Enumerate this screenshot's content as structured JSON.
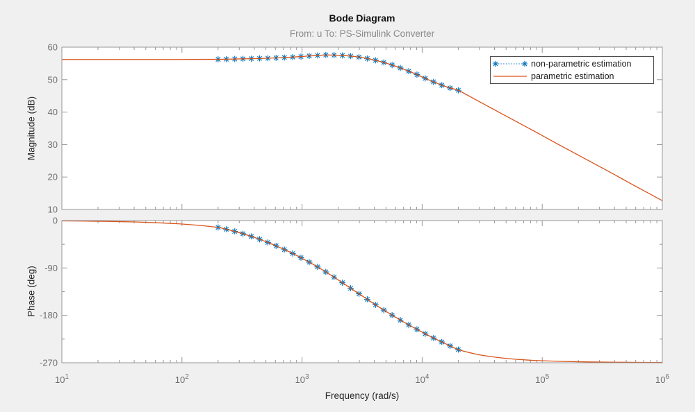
{
  "figure": {
    "title": "Bode Diagram",
    "subtitle": "From: u  To: PS-Simulink Converter",
    "background_color": "#F0F0F0",
    "plot_background": "#FFFFFF",
    "axes_line_color": "#969696",
    "tick_label_color": "#6E6E6E",
    "axis_label_color": "#262626",
    "title_color": "#111111",
    "subtitle_color": "#8A8A8A"
  },
  "legend": {
    "entries": [
      {
        "label": "non-parametric estimation",
        "line_style": "dotted",
        "marker": "asterisk",
        "color": "#0072BD"
      },
      {
        "label": "parametric estimation",
        "line_style": "solid",
        "marker": "none",
        "color": "#D95319"
      }
    ]
  },
  "x_axis": {
    "label": "Frequency  (rad/s)",
    "scale": "log",
    "tick_base": "10",
    "tick_exponents": [
      1,
      2,
      3,
      4,
      5,
      6
    ],
    "xlim": [
      10,
      1000000
    ]
  },
  "chart_data": [
    {
      "type": "line",
      "name": "magnitude-subplot",
      "title": "Bode Diagram",
      "xlabel": "Frequency  (rad/s)",
      "ylabel": "Magnitude (dB)",
      "xscale": "log",
      "xlim": [
        10,
        1000000
      ],
      "ylim": [
        10,
        60
      ],
      "yticks": [
        60,
        50,
        40,
        30,
        20,
        10
      ],
      "yticks_minor": [],
      "grid": false,
      "series": [
        {
          "name": "parametric estimation",
          "color": "#D95319",
          "style": "solid",
          "points": [
            [
              10,
              56.2
            ],
            [
              30,
              56.2
            ],
            [
              60,
              56.2
            ],
            [
              100,
              56.2
            ],
            [
              150,
              56.25
            ],
            [
              200,
              56.25
            ],
            [
              275,
              56.35
            ],
            [
              380,
              56.45
            ],
            [
              520,
              56.6
            ],
            [
              710,
              56.8
            ],
            [
              980,
              57.1
            ],
            [
              1150,
              57.3
            ],
            [
              1350,
              57.45
            ],
            [
              1580,
              57.6
            ],
            [
              1850,
              57.55
            ],
            [
              2170,
              57.45
            ],
            [
              2540,
              57.25
            ],
            [
              2980,
              56.95
            ],
            [
              3490,
              56.5
            ],
            [
              4090,
              55.95
            ],
            [
              4800,
              55.3
            ],
            [
              5620,
              54.5
            ],
            [
              6590,
              53.6
            ],
            [
              7720,
              52.6
            ],
            [
              9050,
              51.55
            ],
            [
              10610,
              50.4
            ],
            [
              12440,
              49.3
            ],
            [
              14580,
              48.3
            ],
            [
              17090,
              47.4
            ],
            [
              20000,
              46.7
            ],
            [
              28000,
              43.8
            ],
            [
              40000,
              40.7
            ],
            [
              60000,
              37.2
            ],
            [
              90000,
              33.7
            ],
            [
              140000,
              29.8
            ],
            [
              220000,
              25.9
            ],
            [
              350000,
              21.9
            ],
            [
              550000,
              17.9
            ],
            [
              1000000,
              12.7
            ]
          ]
        },
        {
          "name": "non-parametric estimation",
          "color": "#0072BD",
          "style": "dotted-asterisk",
          "points": [
            [
              200,
              56.25
            ],
            [
              234,
              56.3
            ],
            [
              275,
              56.35
            ],
            [
              322,
              56.4
            ],
            [
              378,
              56.45
            ],
            [
              443,
              56.55
            ],
            [
              519,
              56.6
            ],
            [
              608,
              56.7
            ],
            [
              713,
              56.8
            ],
            [
              836,
              56.95
            ],
            [
              979,
              57.1
            ],
            [
              1148,
              57.3
            ],
            [
              1346,
              57.45
            ],
            [
              1577,
              57.6
            ],
            [
              1849,
              57.55
            ],
            [
              2167,
              57.45
            ],
            [
              2540,
              57.25
            ],
            [
              2978,
              56.95
            ],
            [
              3490,
              56.5
            ],
            [
              4091,
              55.95
            ],
            [
              4795,
              55.3
            ],
            [
              5621,
              54.5
            ],
            [
              6588,
              53.6
            ],
            [
              7722,
              52.6
            ],
            [
              9052,
              51.55
            ],
            [
              10610,
              50.4
            ],
            [
              12437,
              49.3
            ],
            [
              14578,
              48.3
            ],
            [
              17087,
              47.4
            ],
            [
              20000,
              46.7
            ]
          ]
        }
      ]
    },
    {
      "type": "line",
      "name": "phase-subplot",
      "xlabel": "Frequency  (rad/s)",
      "ylabel": "Phase (deg)",
      "xscale": "log",
      "xlim": [
        10,
        1000000
      ],
      "ylim": [
        -270,
        0
      ],
      "yticks": [
        0,
        -90,
        -180,
        -270
      ],
      "yticks_minor": [
        -45,
        -135,
        -225
      ],
      "grid": false,
      "series": [
        {
          "name": "parametric estimation",
          "color": "#D95319",
          "style": "solid",
          "points": [
            [
              10,
              -0.7
            ],
            [
              15,
              -1.0
            ],
            [
              22,
              -1.5
            ],
            [
              33,
              -2.2
            ],
            [
              47,
              -3.1
            ],
            [
              68,
              -4.5
            ],
            [
              100,
              -6.6
            ],
            [
              140,
              -9.2
            ],
            [
              200,
              -13
            ],
            [
              234,
              -16.5
            ],
            [
              275,
              -20.5
            ],
            [
              322,
              -25
            ],
            [
              378,
              -30
            ],
            [
              443,
              -35.5
            ],
            [
              519,
              -41.5
            ],
            [
              608,
              -48
            ],
            [
              713,
              -55
            ],
            [
              836,
              -62.5
            ],
            [
              979,
              -70.5
            ],
            [
              1148,
              -79
            ],
            [
              1346,
              -88
            ],
            [
              1577,
              -97.5
            ],
            [
              1849,
              -107.5
            ],
            [
              2167,
              -118
            ],
            [
              2540,
              -128.5
            ],
            [
              2978,
              -139
            ],
            [
              3490,
              -149.5
            ],
            [
              4091,
              -160
            ],
            [
              4795,
              -170
            ],
            [
              5621,
              -179.5
            ],
            [
              6588,
              -189
            ],
            [
              7722,
              -198
            ],
            [
              9052,
              -206.5
            ],
            [
              10610,
              -215
            ],
            [
              12437,
              -223
            ],
            [
              14578,
              -230.5
            ],
            [
              17087,
              -238
            ],
            [
              20000,
              -245
            ],
            [
              24500,
              -250.5
            ],
            [
              31000,
              -255.5
            ],
            [
              42000,
              -259.8
            ],
            [
              56000,
              -262.8
            ],
            [
              75000,
              -264.8
            ],
            [
              100000,
              -266.2
            ],
            [
              150000,
              -267.5
            ],
            [
              240000,
              -268.4
            ],
            [
              420000,
              -269
            ],
            [
              700000,
              -269.3
            ],
            [
              1000000,
              -269.5
            ]
          ]
        },
        {
          "name": "non-parametric estimation",
          "color": "#0072BD",
          "style": "dotted-asterisk",
          "points": [
            [
              200,
              -13
            ],
            [
              234,
              -16.5
            ],
            [
              275,
              -20.5
            ],
            [
              322,
              -25
            ],
            [
              378,
              -30
            ],
            [
              443,
              -35.5
            ],
            [
              519,
              -41.5
            ],
            [
              608,
              -48
            ],
            [
              713,
              -55
            ],
            [
              836,
              -62.5
            ],
            [
              979,
              -70.5
            ],
            [
              1148,
              -79
            ],
            [
              1346,
              -88
            ],
            [
              1577,
              -97.5
            ],
            [
              1849,
              -107.5
            ],
            [
              2167,
              -118
            ],
            [
              2540,
              -128.5
            ],
            [
              2978,
              -139
            ],
            [
              3490,
              -149.5
            ],
            [
              4091,
              -160
            ],
            [
              4795,
              -170
            ],
            [
              5621,
              -179.5
            ],
            [
              6588,
              -189
            ],
            [
              7722,
              -198
            ],
            [
              9052,
              -206.5
            ],
            [
              10610,
              -215
            ],
            [
              12437,
              -223
            ],
            [
              14578,
              -230.5
            ],
            [
              17087,
              -238
            ],
            [
              20000,
              -245
            ]
          ]
        }
      ]
    }
  ]
}
